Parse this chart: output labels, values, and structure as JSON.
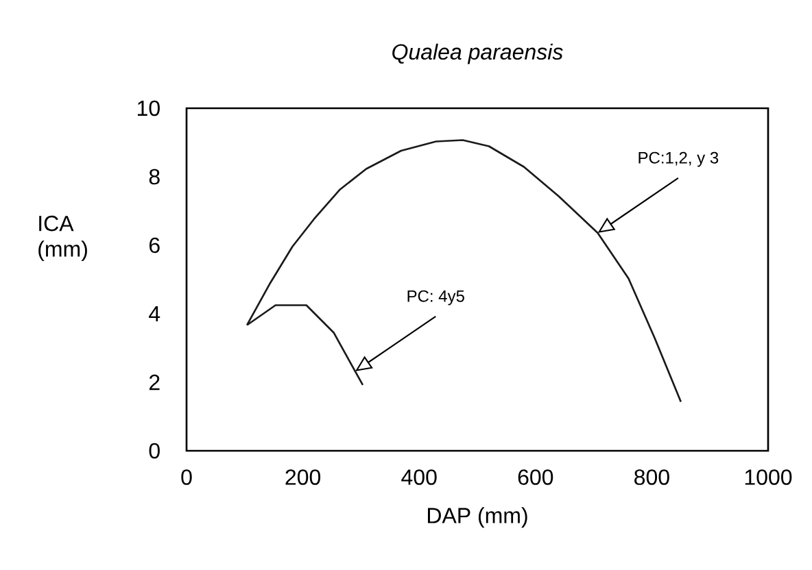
{
  "chart_data": {
    "type": "line",
    "title": "Qualea paraensis",
    "xlabel": "DAP (mm)",
    "ylabel": "ICA (mm)",
    "xlim": [
      0,
      1000
    ],
    "ylim": [
      0,
      10
    ],
    "xticks": [
      0,
      200,
      400,
      600,
      800,
      1000
    ],
    "yticks": [
      0,
      2,
      4,
      6,
      8,
      10
    ],
    "series": [
      {
        "color": "#1a1a1a",
        "x": [
          104,
          144,
          182,
          219,
          264,
          309,
          369,
          429,
          475,
          520,
          580,
          640,
          707,
          760,
          805,
          850
        ],
        "values": [
          3.67,
          4.9,
          5.96,
          6.76,
          7.63,
          8.23,
          8.76,
          9.03,
          9.07,
          8.89,
          8.29,
          7.43,
          6.36,
          5.03,
          3.29,
          1.43
        ]
      },
      {
        "color": "#1a1a1a",
        "x": [
          104,
          153,
          206,
          253,
          303
        ],
        "values": [
          3.67,
          4.25,
          4.25,
          3.45,
          1.92
        ]
      }
    ],
    "annotations": [
      "PC:1,2, y 3",
      "PC: 4y5"
    ]
  }
}
